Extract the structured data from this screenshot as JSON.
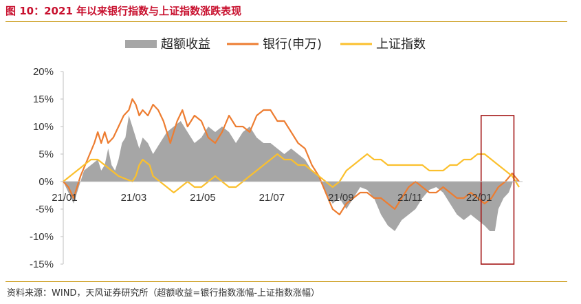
{
  "figure_title": "图 10：2021 年以来银行指数与上证指数涨跌表现",
  "source_note": "资料来源：WIND，天风证券研究所（超额收益=银行指数涨幅-上证指数涨幅）",
  "chart_data": {
    "type": "line",
    "title": "",
    "xlabel": "",
    "ylabel": "",
    "ylim": [
      -15,
      20
    ],
    "yticks": [
      20,
      15,
      10,
      5,
      0,
      -5,
      -10,
      -15
    ],
    "ytick_labels": [
      "20%",
      "15%",
      "10%",
      "5%",
      "0%",
      "-5%",
      "-10%",
      "-15%"
    ],
    "xlim": [
      0,
      13.3
    ],
    "xticks": [
      0,
      2,
      4,
      6,
      8,
      10,
      12
    ],
    "xtick_labels": [
      "21/01",
      "21/03",
      "21/05",
      "21/07",
      "21/09",
      "21/11",
      "22/01"
    ],
    "x_unit_note": "months since 2021-01-01",
    "legend_position": "top",
    "grid": false,
    "highlight_box": {
      "x_range": [
        12.1,
        13.05
      ],
      "y_range": [
        -15,
        12
      ],
      "color": "#a31515"
    },
    "series": [
      {
        "name": "超额收益",
        "kind": "area",
        "color": "#a6a6a6",
        "points": [
          [
            0.0,
            0
          ],
          [
            0.15,
            -2
          ],
          [
            0.3,
            -4
          ],
          [
            0.45,
            -1
          ],
          [
            0.6,
            2
          ],
          [
            0.8,
            3
          ],
          [
            1.0,
            4
          ],
          [
            1.1,
            2
          ],
          [
            1.2,
            3
          ],
          [
            1.3,
            6
          ],
          [
            1.4,
            3
          ],
          [
            1.5,
            2
          ],
          [
            1.6,
            4
          ],
          [
            1.7,
            7
          ],
          [
            1.8,
            8
          ],
          [
            1.9,
            12
          ],
          [
            2.0,
            10
          ],
          [
            2.1,
            8
          ],
          [
            2.2,
            6
          ],
          [
            2.3,
            8
          ],
          [
            2.45,
            7
          ],
          [
            2.6,
            5
          ],
          [
            2.8,
            7
          ],
          [
            3.0,
            9
          ],
          [
            3.2,
            10
          ],
          [
            3.4,
            11
          ],
          [
            3.6,
            9
          ],
          [
            3.8,
            7
          ],
          [
            4.0,
            8
          ],
          [
            4.2,
            10
          ],
          [
            4.4,
            9
          ],
          [
            4.6,
            10
          ],
          [
            4.8,
            9
          ],
          [
            5.0,
            7
          ],
          [
            5.2,
            9
          ],
          [
            5.4,
            10
          ],
          [
            5.6,
            8
          ],
          [
            5.8,
            7
          ],
          [
            6.0,
            7
          ],
          [
            6.2,
            6
          ],
          [
            6.4,
            5
          ],
          [
            6.6,
            6
          ],
          [
            6.8,
            5
          ],
          [
            7.0,
            4
          ],
          [
            7.2,
            2
          ],
          [
            7.4,
            1
          ],
          [
            7.6,
            -2
          ],
          [
            7.8,
            -4
          ],
          [
            8.0,
            -3
          ],
          [
            8.2,
            -5
          ],
          [
            8.4,
            -3
          ],
          [
            8.6,
            -1
          ],
          [
            8.8,
            -1.5
          ],
          [
            9.0,
            -3
          ],
          [
            9.2,
            -6
          ],
          [
            9.4,
            -8
          ],
          [
            9.6,
            -9
          ],
          [
            9.8,
            -7
          ],
          [
            10.0,
            -6
          ],
          [
            10.2,
            -5
          ],
          [
            10.4,
            -3
          ],
          [
            10.6,
            -1.5
          ],
          [
            10.8,
            -1
          ],
          [
            11.0,
            -2
          ],
          [
            11.2,
            -4
          ],
          [
            11.4,
            -6
          ],
          [
            11.6,
            -7
          ],
          [
            11.8,
            -6
          ],
          [
            12.0,
            -7
          ],
          [
            12.2,
            -8
          ],
          [
            12.35,
            -9
          ],
          [
            12.5,
            -9
          ],
          [
            12.6,
            -5
          ],
          [
            12.75,
            -3
          ],
          [
            12.9,
            -2
          ],
          [
            13.05,
            0.5
          ],
          [
            13.2,
            0
          ]
        ]
      },
      {
        "name": "银行(申万)",
        "kind": "line",
        "color": "#ed7d31",
        "points": [
          [
            0.0,
            0
          ],
          [
            0.15,
            -1
          ],
          [
            0.3,
            -3
          ],
          [
            0.5,
            1
          ],
          [
            0.7,
            4
          ],
          [
            0.9,
            7
          ],
          [
            1.0,
            9
          ],
          [
            1.1,
            7
          ],
          [
            1.2,
            9
          ],
          [
            1.3,
            7
          ],
          [
            1.45,
            8
          ],
          [
            1.6,
            10
          ],
          [
            1.75,
            12
          ],
          [
            1.9,
            13
          ],
          [
            2.0,
            15
          ],
          [
            2.1,
            14
          ],
          [
            2.2,
            12
          ],
          [
            2.3,
            13
          ],
          [
            2.45,
            12
          ],
          [
            2.6,
            14
          ],
          [
            2.75,
            13
          ],
          [
            2.9,
            11
          ],
          [
            3.0,
            9
          ],
          [
            3.1,
            7
          ],
          [
            3.2,
            9
          ],
          [
            3.3,
            11
          ],
          [
            3.45,
            13
          ],
          [
            3.6,
            10
          ],
          [
            3.8,
            12
          ],
          [
            4.0,
            11
          ],
          [
            4.2,
            8
          ],
          [
            4.4,
            7
          ],
          [
            4.6,
            9
          ],
          [
            4.8,
            12
          ],
          [
            5.0,
            10
          ],
          [
            5.2,
            10
          ],
          [
            5.4,
            9
          ],
          [
            5.6,
            12
          ],
          [
            5.8,
            13
          ],
          [
            6.0,
            13
          ],
          [
            6.2,
            11
          ],
          [
            6.4,
            11
          ],
          [
            6.6,
            9
          ],
          [
            6.8,
            7
          ],
          [
            7.0,
            6
          ],
          [
            7.2,
            3
          ],
          [
            7.4,
            1
          ],
          [
            7.6,
            -2
          ],
          [
            7.8,
            -5
          ],
          [
            8.0,
            -6
          ],
          [
            8.2,
            -4
          ],
          [
            8.4,
            -3
          ],
          [
            8.6,
            -2
          ],
          [
            8.8,
            -2
          ],
          [
            9.0,
            -3
          ],
          [
            9.2,
            -3
          ],
          [
            9.4,
            -4
          ],
          [
            9.6,
            -5
          ],
          [
            9.8,
            -3
          ],
          [
            10.0,
            -1
          ],
          [
            10.2,
            0
          ],
          [
            10.4,
            -1
          ],
          [
            10.6,
            -2
          ],
          [
            10.8,
            -2
          ],
          [
            11.0,
            -1
          ],
          [
            11.2,
            -2
          ],
          [
            11.4,
            -3
          ],
          [
            11.6,
            -3
          ],
          [
            11.8,
            -2
          ],
          [
            12.0,
            -3
          ],
          [
            12.2,
            -4
          ],
          [
            12.4,
            -3
          ],
          [
            12.6,
            -1
          ],
          [
            12.8,
            0
          ],
          [
            13.0,
            1.5
          ],
          [
            13.2,
            0
          ]
        ]
      },
      {
        "name": "上证指数",
        "kind": "line",
        "color": "#fbc02d",
        "points": [
          [
            0.0,
            0
          ],
          [
            0.2,
            1
          ],
          [
            0.4,
            2
          ],
          [
            0.6,
            3
          ],
          [
            0.8,
            4
          ],
          [
            1.0,
            4
          ],
          [
            1.2,
            3
          ],
          [
            1.4,
            2
          ],
          [
            1.6,
            1
          ],
          [
            1.8,
            0.5
          ],
          [
            2.0,
            0
          ],
          [
            2.1,
            1
          ],
          [
            2.2,
            3
          ],
          [
            2.3,
            4
          ],
          [
            2.5,
            3
          ],
          [
            2.6,
            1
          ],
          [
            2.8,
            0
          ],
          [
            3.0,
            -1
          ],
          [
            3.2,
            -2
          ],
          [
            3.4,
            -1
          ],
          [
            3.6,
            0
          ],
          [
            3.8,
            -1
          ],
          [
            4.0,
            -1
          ],
          [
            4.2,
            0
          ],
          [
            4.4,
            1
          ],
          [
            4.6,
            0
          ],
          [
            4.8,
            -1
          ],
          [
            5.0,
            -1
          ],
          [
            5.2,
            0
          ],
          [
            5.4,
            1
          ],
          [
            5.6,
            2
          ],
          [
            5.8,
            3
          ],
          [
            6.0,
            4
          ],
          [
            6.2,
            5
          ],
          [
            6.4,
            4
          ],
          [
            6.6,
            4
          ],
          [
            6.8,
            3
          ],
          [
            7.0,
            3
          ],
          [
            7.2,
            2
          ],
          [
            7.4,
            1
          ],
          [
            7.6,
            0
          ],
          [
            7.8,
            -1
          ],
          [
            8.0,
            0
          ],
          [
            8.2,
            2
          ],
          [
            8.4,
            3
          ],
          [
            8.6,
            4
          ],
          [
            8.8,
            5
          ],
          [
            9.0,
            4
          ],
          [
            9.2,
            4
          ],
          [
            9.4,
            3
          ],
          [
            9.6,
            3
          ],
          [
            9.8,
            3
          ],
          [
            10.0,
            3
          ],
          [
            10.2,
            3
          ],
          [
            10.4,
            3
          ],
          [
            10.6,
            2
          ],
          [
            10.8,
            2
          ],
          [
            11.0,
            2
          ],
          [
            11.2,
            3
          ],
          [
            11.4,
            3
          ],
          [
            11.6,
            4
          ],
          [
            11.8,
            4
          ],
          [
            12.0,
            5
          ],
          [
            12.2,
            5
          ],
          [
            12.4,
            4
          ],
          [
            12.6,
            3
          ],
          [
            12.8,
            2
          ],
          [
            13.0,
            1
          ],
          [
            13.2,
            -1
          ]
        ]
      }
    ]
  }
}
